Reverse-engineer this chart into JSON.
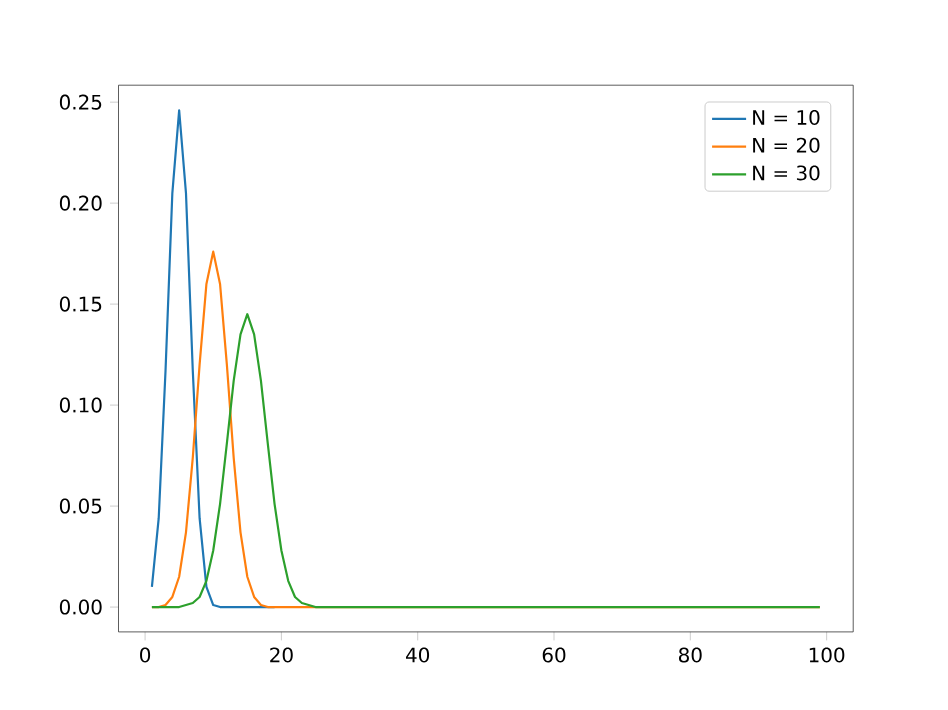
{
  "chart_data": {
    "type": "line",
    "x": [
      1,
      2,
      3,
      4,
      5,
      6,
      7,
      8,
      9,
      10,
      11,
      12,
      13,
      14,
      15,
      16,
      17,
      18,
      19,
      20,
      21,
      22,
      23,
      24,
      25,
      26,
      99
    ],
    "series": [
      {
        "name": "N = 10",
        "color": "#1f77b4",
        "values": [
          0.01,
          0.044,
          0.117,
          0.205,
          0.246,
          0.205,
          0.117,
          0.044,
          0.01,
          0.001,
          0,
          0,
          0,
          0,
          0,
          0,
          0,
          0,
          0,
          null,
          null,
          null,
          null,
          null,
          null,
          null,
          null
        ]
      },
      {
        "name": "N = 20",
        "color": "#ff7f0e",
        "values": [
          0,
          0,
          0.001,
          0.005,
          0.015,
          0.037,
          0.074,
          0.12,
          0.16,
          0.176,
          0.16,
          0.12,
          0.074,
          0.037,
          0.015,
          0.005,
          0.001,
          0,
          0,
          0,
          0,
          0,
          0,
          0,
          0,
          0,
          0
        ]
      },
      {
        "name": "N = 30",
        "color": "#2ca02c",
        "values": [
          0,
          0,
          0,
          0,
          0,
          0.001,
          0.002,
          0.005,
          0.013,
          0.028,
          0.051,
          0.081,
          0.112,
          0.135,
          0.145,
          0.135,
          0.112,
          0.081,
          0.051,
          0.028,
          0.013,
          0.005,
          0.002,
          0.001,
          0,
          0,
          0
        ]
      }
    ],
    "xlim": [
      -3.9,
      103.9
    ],
    "ylim": [
      -0.0123,
      0.2584
    ],
    "xticks": [
      0,
      20,
      40,
      60,
      80,
      100
    ],
    "yticks": [
      {
        "value": 0,
        "label": "0.00"
      },
      {
        "value": 0.05,
        "label": "0.05"
      },
      {
        "value": 0.1,
        "label": "0.10"
      },
      {
        "value": 0.15,
        "label": "0.15"
      },
      {
        "value": 0.2,
        "label": "0.20"
      },
      {
        "value": 0.25,
        "label": "0.25"
      }
    ],
    "legend": "top right",
    "grid": false,
    "marker": "none",
    "line_style": "solid"
  }
}
